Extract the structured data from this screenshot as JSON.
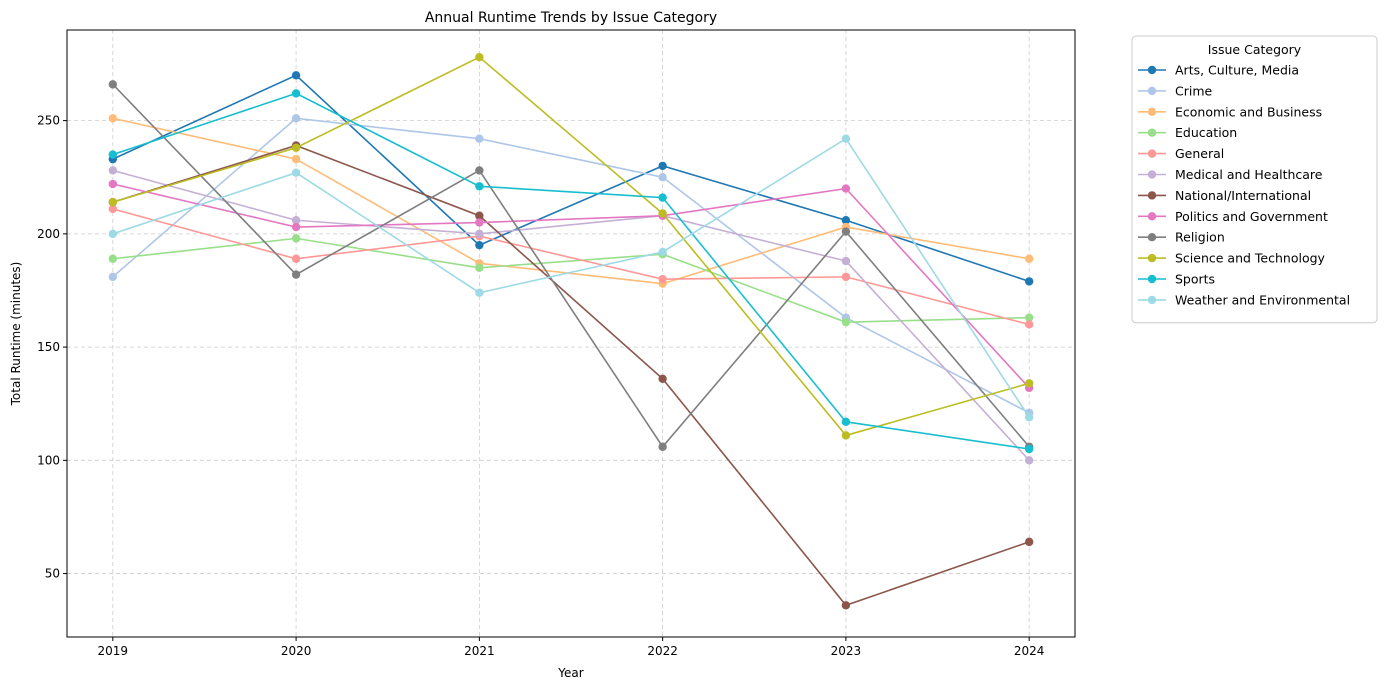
{
  "chart_data": {
    "type": "line",
    "title": "Annual Runtime Trends by Issue Category",
    "xlabel": "Year",
    "ylabel": "Total Runtime (minutes)",
    "x": [
      2019,
      2020,
      2021,
      2022,
      2023,
      2024
    ],
    "x_tick_labels": [
      "2019",
      "2020",
      "2021",
      "2022",
      "2023",
      "2024"
    ],
    "ylim": [
      22,
      290
    ],
    "y_ticks": [
      50,
      100,
      150,
      200,
      250
    ],
    "y_tick_labels": [
      "50",
      "100",
      "150",
      "200",
      "250"
    ],
    "grid": true,
    "legend_title": "Issue Category",
    "legend_placement": "outside-right",
    "series": [
      {
        "name": "Arts, Culture, Media",
        "color": "#1f77b4",
        "values": [
          233,
          270,
          195,
          230,
          206,
          179
        ]
      },
      {
        "name": "Crime",
        "color": "#aec7e8",
        "values": [
          181,
          251,
          242,
          225,
          163,
          121
        ]
      },
      {
        "name": "Economic and Business",
        "color": "#ffbb78",
        "values": [
          251,
          233,
          187,
          178,
          203,
          189
        ]
      },
      {
        "name": "Education",
        "color": "#98df8a",
        "values": [
          189,
          198,
          185,
          191,
          161,
          163
        ]
      },
      {
        "name": "General",
        "color": "#ff9896",
        "values": [
          211,
          189,
          199,
          180,
          181,
          160
        ]
      },
      {
        "name": "Medical and Healthcare",
        "color": "#c5b0d5",
        "values": [
          228,
          206,
          200,
          208,
          188,
          100
        ]
      },
      {
        "name": "National/International",
        "color": "#8c564b",
        "values": [
          214,
          239,
          208,
          136,
          36,
          64
        ]
      },
      {
        "name": "Politics and Government",
        "color": "#e377c2",
        "values": [
          222,
          203,
          205,
          208,
          220,
          132
        ]
      },
      {
        "name": "Religion",
        "color": "#7f7f7f",
        "values": [
          266,
          182,
          228,
          106,
          201,
          106
        ]
      },
      {
        "name": "Science and Technology",
        "color": "#bcbd22",
        "values": [
          214,
          238,
          278,
          209,
          111,
          134
        ]
      },
      {
        "name": "Sports",
        "color": "#17becf",
        "values": [
          235,
          262,
          221,
          216,
          117,
          105
        ]
      },
      {
        "name": "Weather and Environmental",
        "color": "#9edae5",
        "values": [
          200,
          227,
          174,
          192,
          242,
          119
        ]
      }
    ]
  }
}
